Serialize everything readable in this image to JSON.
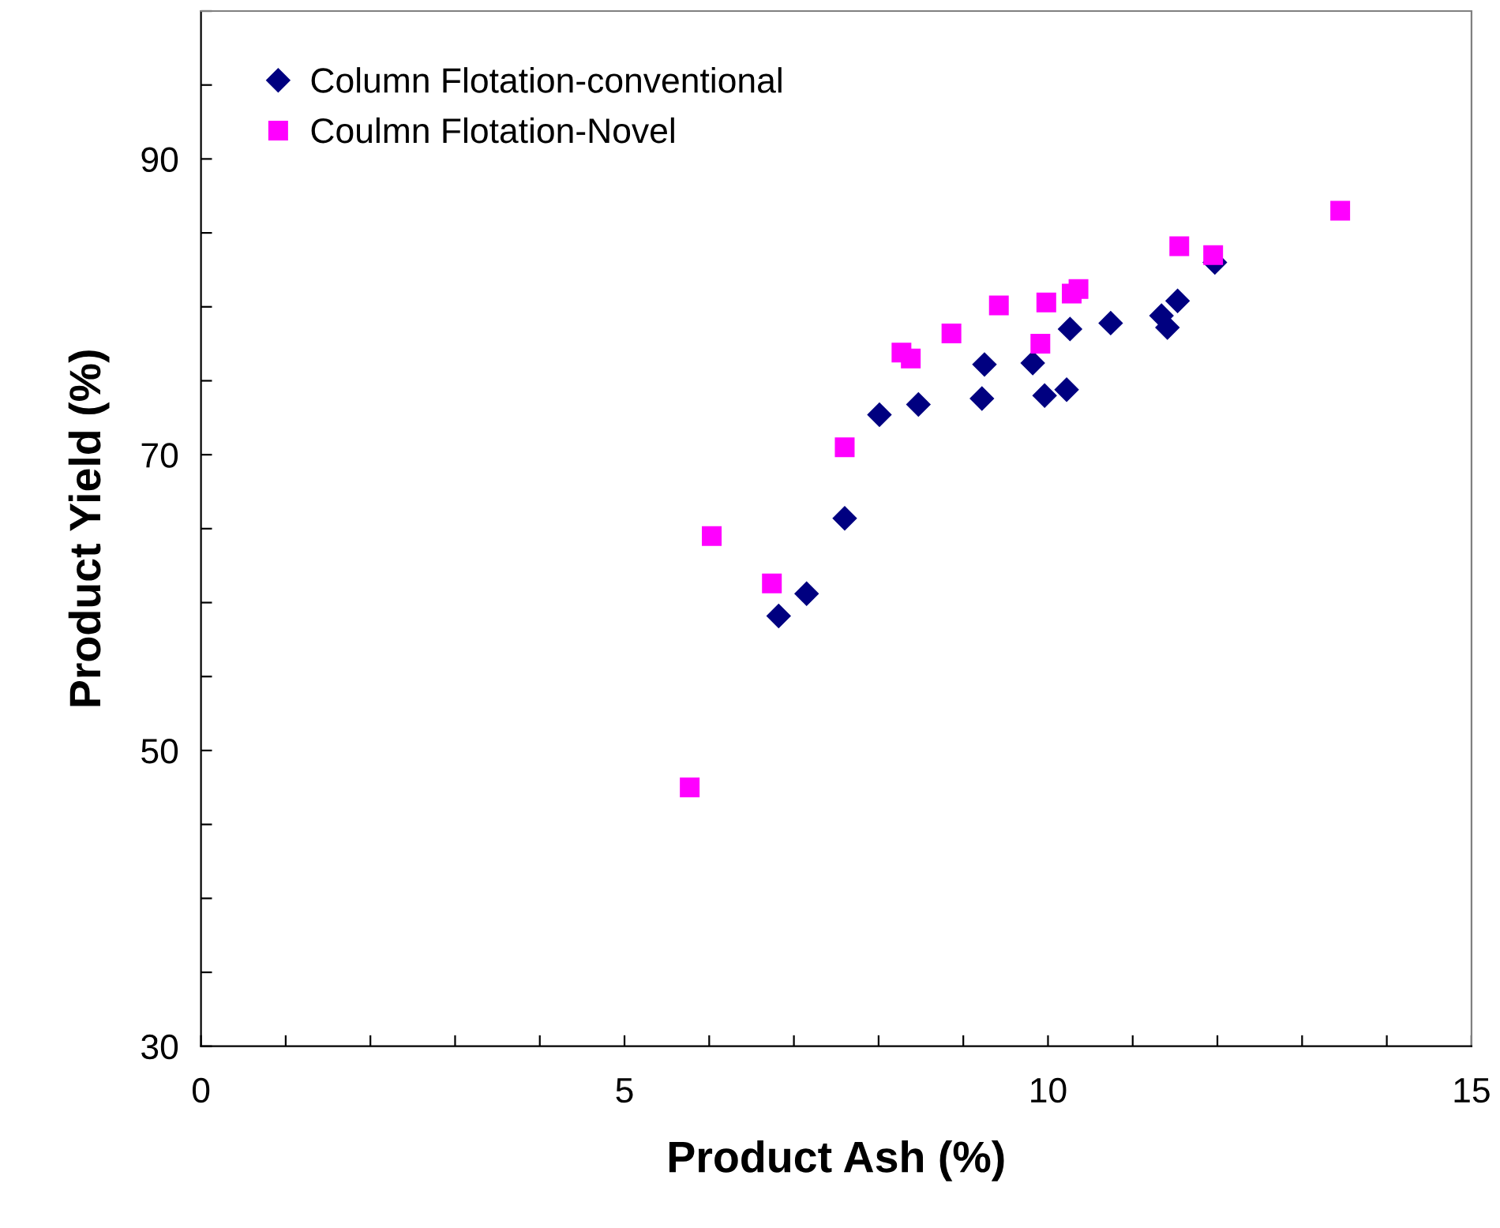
{
  "chart_data": {
    "type": "scatter",
    "xlabel": "Product Ash (%)",
    "ylabel": "Product Yield (%)",
    "xlim": [
      0,
      15
    ],
    "xticks": [
      0,
      {
        "value": 1,
        "label": null
      },
      {
        "value": 2,
        "label": null
      },
      {
        "value": 3,
        "label": null
      },
      {
        "value": 4,
        "label": null
      },
      5,
      {
        "value": 6,
        "label": null
      },
      {
        "value": 7,
        "label": null
      },
      {
        "value": 8,
        "label": null
      },
      {
        "value": 9,
        "label": null
      },
      10,
      {
        "value": 11,
        "label": null
      },
      {
        "value": 12,
        "label": null
      },
      {
        "value": 13,
        "label": null
      },
      {
        "value": 14,
        "label": null
      },
      15
    ],
    "ylim": [
      30,
      100
    ],
    "yticks": [
      30,
      {
        "value": 35,
        "label": null
      },
      {
        "value": 40,
        "label": null
      },
      {
        "value": 45,
        "label": null
      },
      50,
      {
        "value": 55,
        "label": null
      },
      {
        "value": 60,
        "label": null
      },
      {
        "value": 65,
        "label": null
      },
      70,
      {
        "value": 75,
        "label": null
      },
      {
        "value": 80,
        "label": null
      },
      {
        "value": 85,
        "label": null
      },
      90,
      {
        "value": 95,
        "label": null
      },
      {
        "value": 100,
        "label": null
      }
    ],
    "grid": false,
    "legend": "top left",
    "series": [
      {
        "name": "Column Flotation-conventional",
        "color": "#000080",
        "marker": "diamond",
        "x": [
          6.82,
          7.15,
          7.6,
          8.01,
          8.47,
          9.22,
          9.25,
          9.82,
          9.96,
          10.22,
          10.26,
          10.74,
          11.34,
          11.41,
          11.53,
          11.97
        ],
        "values": [
          59.1,
          60.6,
          65.7,
          72.7,
          73.4,
          73.8,
          76.1,
          76.2,
          74.0,
          74.4,
          78.5,
          78.9,
          79.4,
          78.6,
          80.4,
          83.0
        ]
      },
      {
        "name": "Coulmn Flotation-Novel",
        "color": "#ff00ff",
        "marker": "square",
        "x": [
          5.77,
          6.03,
          6.74,
          7.6,
          8.27,
          8.38,
          8.86,
          9.42,
          9.91,
          9.98,
          10.28,
          10.36,
          11.55,
          11.95,
          13.45
        ],
        "values": [
          47.5,
          64.5,
          61.3,
          70.5,
          76.9,
          76.5,
          78.2,
          80.1,
          77.5,
          80.3,
          80.9,
          81.2,
          84.1,
          83.5,
          86.5
        ]
      }
    ]
  }
}
